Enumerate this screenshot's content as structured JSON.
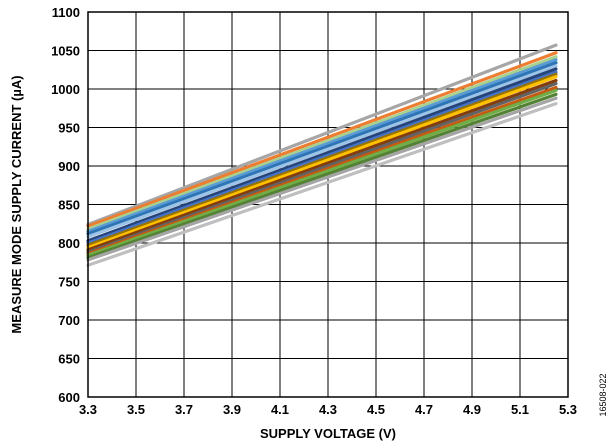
{
  "chart_data": {
    "type": "line",
    "title": "",
    "xlabel": "SUPPLY VOLTAGE (V)",
    "ylabel": "MEASURE MODE SUPPLY CURRENT (µA)",
    "xlim": [
      3.3,
      5.3
    ],
    "ylim": [
      600,
      1100
    ],
    "xticks": [
      3.3,
      3.5,
      3.7,
      3.9,
      4.1,
      4.3,
      4.5,
      4.7,
      4.9,
      5.1,
      5.3
    ],
    "xtick_labels": [
      "3.3",
      "3.5",
      "3.7",
      "3.9",
      "4.1",
      "4.3",
      "4.5",
      "4.7",
      "4.9",
      "5.1",
      "5.3"
    ],
    "yticks": [
      600,
      650,
      700,
      750,
      800,
      850,
      900,
      950,
      1000,
      1050,
      1100
    ],
    "ytick_labels": [
      "600",
      "650",
      "700",
      "750",
      "800",
      "850",
      "900",
      "950",
      "1000",
      "1050",
      "1100"
    ],
    "grid": true,
    "legend": "none",
    "figure_id": "16508-022",
    "series": [
      {
        "color": "#a6a6a6",
        "x": [
          3.3,
          5.25
        ],
        "y": [
          824,
          1057
        ]
      },
      {
        "color": "#ed7d31",
        "x": [
          3.3,
          5.25
        ],
        "y": [
          822,
          1047
        ]
      },
      {
        "color": "#a9d18e",
        "x": [
          3.3,
          5.25
        ],
        "y": [
          818,
          1042
        ]
      },
      {
        "color": "#5b9bd5",
        "x": [
          3.3,
          5.25
        ],
        "y": [
          815,
          1038
        ]
      },
      {
        "color": "#2e75b6",
        "x": [
          3.3,
          5.25
        ],
        "y": [
          812,
          1034
        ]
      },
      {
        "color": "#9dc3e6",
        "x": [
          3.3,
          5.25
        ],
        "y": [
          808,
          1030
        ]
      },
      {
        "color": "#264478",
        "x": [
          3.3,
          5.25
        ],
        "y": [
          803,
          1026
        ]
      },
      {
        "color": "#4472c4",
        "x": [
          3.3,
          5.25
        ],
        "y": [
          800,
          1022
        ]
      },
      {
        "color": "#997300",
        "x": [
          3.3,
          5.25
        ],
        "y": [
          797,
          1019
        ]
      },
      {
        "color": "#ffc000",
        "x": [
          3.3,
          5.25
        ],
        "y": [
          794,
          1016
        ]
      },
      {
        "color": "#843c0c",
        "x": [
          3.3,
          5.25
        ],
        "y": [
          791,
          1011
        ]
      },
      {
        "color": "#636363",
        "x": [
          3.3,
          5.25
        ],
        "y": [
          788,
          1007
        ]
      },
      {
        "color": "#c55a11",
        "x": [
          3.3,
          5.25
        ],
        "y": [
          786,
          1002
        ]
      },
      {
        "color": "#70ad47",
        "x": [
          3.3,
          5.25
        ],
        "y": [
          784,
          998
        ]
      },
      {
        "color": "#548235",
        "x": [
          3.3,
          5.25
        ],
        "y": [
          781,
          993
        ]
      },
      {
        "color": "#a5a5a5",
        "x": [
          3.3,
          5.25
        ],
        "y": [
          778,
          988
        ]
      },
      {
        "color": "#bfbfbf",
        "x": [
          3.3,
          5.25
        ],
        "y": [
          771,
          981
        ]
      }
    ]
  }
}
